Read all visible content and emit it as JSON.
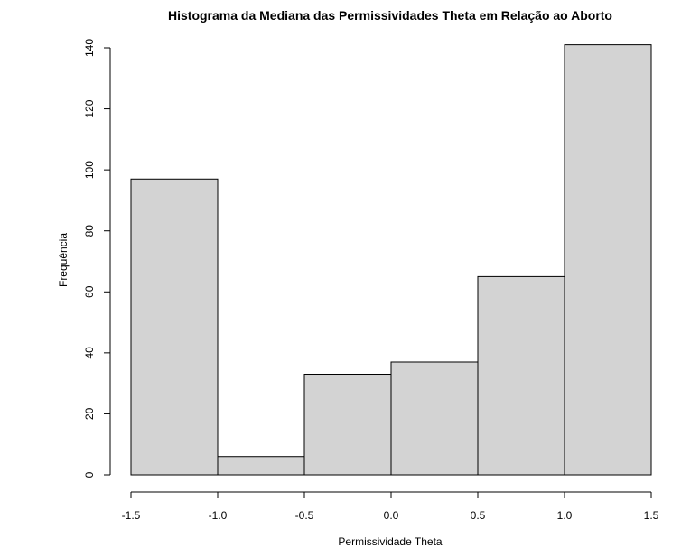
{
  "chart_data": {
    "type": "bar",
    "title": "Histograma da Mediana das Permissividades Theta em Relação ao Aborto",
    "xlabel": "Permissividade Theta",
    "ylabel": "Frequência",
    "bins": [
      {
        "x0": -1.5,
        "x1": -1.0,
        "count": 97
      },
      {
        "x0": -1.0,
        "x1": -0.5,
        "count": 6
      },
      {
        "x0": -0.5,
        "x1": 0.0,
        "count": 33
      },
      {
        "x0": 0.0,
        "x1": 0.5,
        "count": 37
      },
      {
        "x0": 0.5,
        "x1": 1.0,
        "count": 65
      },
      {
        "x0": 1.0,
        "x1": 1.5,
        "count": 141
      }
    ],
    "xlim": [
      -1.5,
      1.5
    ],
    "ylim": [
      0,
      140
    ],
    "xticks": [
      "-1.5",
      "-1.0",
      "-0.5",
      "0.0",
      "0.5",
      "1.0",
      "1.5"
    ],
    "yticks": [
      "0",
      "20",
      "40",
      "60",
      "80",
      "100",
      "120",
      "140"
    ],
    "bar_color": "#d3d3d3",
    "border_color": "#000000",
    "grid": false
  }
}
